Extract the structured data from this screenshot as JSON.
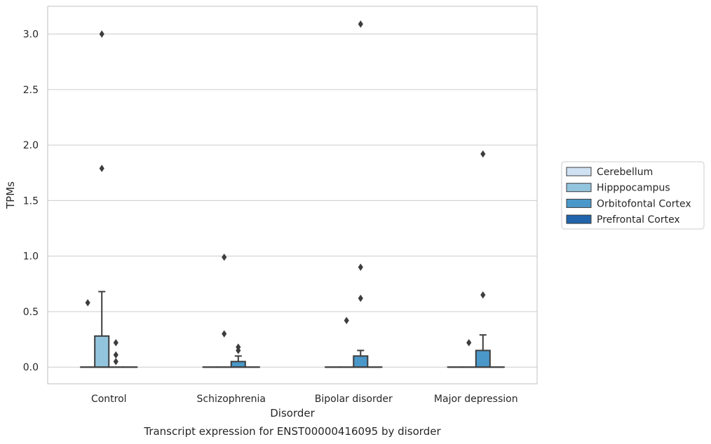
{
  "chart_data": {
    "type": "box",
    "caption": "Transcript expression for ENST00000416095 by disorder",
    "xlabel": "Disorder",
    "ylabel": "TPMs",
    "categories": [
      "Control",
      "Schizophrenia",
      "Bipolar disorder",
      "Major depression"
    ],
    "ylim": [
      -0.15,
      3.25
    ],
    "yticks": [
      0.0,
      0.5,
      1.0,
      1.5,
      2.0,
      2.5,
      3.0
    ],
    "ytick_labels": [
      "0.0",
      "0.5",
      "1.0",
      "1.5",
      "2.0",
      "2.5",
      "3.0"
    ],
    "grid": true,
    "legend": {
      "placement": "right",
      "entries": [
        "Cerebellum",
        "Hipppocampus",
        "Orbitofontal Cortex",
        "Prefrontal Cortex"
      ]
    },
    "colors": {
      "Cerebellum": "#cfe1f2",
      "Hipppocampus": "#93c4de",
      "Orbitofontal Cortex": "#4a98c9",
      "Prefrontal Cortex": "#2164ab",
      "line": "#3d3d3d",
      "grid": "#cccccc"
    },
    "series": [
      {
        "name": "Cerebellum",
        "boxes": [
          {
            "q1": 0,
            "median": 0,
            "q3": 0,
            "whisker_low": 0,
            "whisker_high": 0,
            "outliers": [
              0.58
            ]
          },
          {
            "q1": 0,
            "median": 0,
            "q3": 0,
            "whisker_low": 0,
            "whisker_high": 0,
            "outliers": []
          },
          {
            "q1": 0,
            "median": 0,
            "q3": 0,
            "whisker_low": 0,
            "whisker_high": 0,
            "outliers": []
          },
          {
            "q1": 0,
            "median": 0,
            "q3": 0,
            "whisker_low": 0,
            "whisker_high": 0,
            "outliers": []
          }
        ]
      },
      {
        "name": "Hipppocampus",
        "boxes": [
          {
            "q1": 0,
            "median": 0,
            "q3": 0.28,
            "whisker_low": 0,
            "whisker_high": 0.68,
            "outliers": [
              1.79,
              3.0
            ]
          },
          {
            "q1": 0,
            "median": 0,
            "q3": 0,
            "whisker_low": 0,
            "whisker_high": 0,
            "outliers": [
              0.3,
              0.99
            ]
          },
          {
            "q1": 0,
            "median": 0,
            "q3": 0,
            "whisker_low": 0,
            "whisker_high": 0,
            "outliers": [
              0.42
            ]
          },
          {
            "q1": 0,
            "median": 0,
            "q3": 0,
            "whisker_low": 0,
            "whisker_high": 0,
            "outliers": [
              0.22
            ]
          }
        ]
      },
      {
        "name": "Orbitofontal Cortex",
        "boxes": [
          {
            "q1": 0,
            "median": 0,
            "q3": 0,
            "whisker_low": 0,
            "whisker_high": 0,
            "outliers": [
              0.05,
              0.11,
              0.22
            ]
          },
          {
            "q1": 0,
            "median": 0,
            "q3": 0.05,
            "whisker_low": 0,
            "whisker_high": 0.1,
            "outliers": [
              0.15,
              0.18
            ]
          },
          {
            "q1": 0,
            "median": 0,
            "q3": 0.1,
            "whisker_low": 0,
            "whisker_high": 0.15,
            "outliers": [
              0.62,
              0.9,
              3.09
            ]
          },
          {
            "q1": 0,
            "median": 0,
            "q3": 0.15,
            "whisker_low": 0,
            "whisker_high": 0.29,
            "outliers": [
              0.65,
              1.92
            ]
          }
        ]
      },
      {
        "name": "Prefrontal Cortex",
        "boxes": [
          {
            "q1": 0,
            "median": 0,
            "q3": 0,
            "whisker_low": 0,
            "whisker_high": 0,
            "outliers": []
          },
          {
            "q1": 0,
            "median": 0,
            "q3": 0,
            "whisker_low": 0,
            "whisker_high": 0,
            "outliers": []
          },
          {
            "q1": 0,
            "median": 0,
            "q3": 0,
            "whisker_low": 0,
            "whisker_high": 0,
            "outliers": []
          },
          {
            "q1": 0,
            "median": 0,
            "q3": 0,
            "whisker_low": 0,
            "whisker_high": 0,
            "outliers": []
          }
        ]
      }
    ]
  }
}
